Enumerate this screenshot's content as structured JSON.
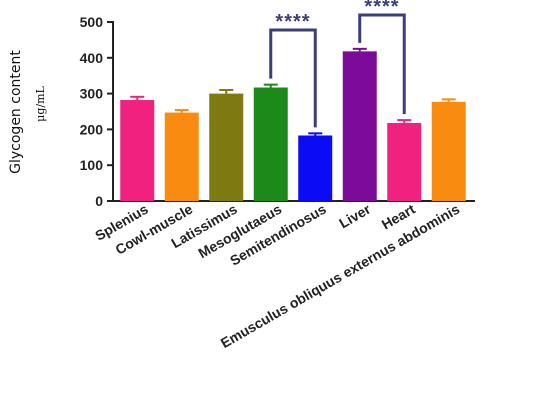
{
  "chart_data": {
    "type": "bar",
    "title": "",
    "ylabel": "Glycogen content",
    "yunit": "μg/mL",
    "ylim": [
      0,
      500
    ],
    "yticks": [
      0,
      100,
      200,
      300,
      400,
      500
    ],
    "categories": [
      "Splenius",
      "Cowl-muscle",
      "Latissimus",
      "Mesoglutaeus",
      "Semitendinosus",
      "Liver",
      "Heart",
      "Emusculus obliquus externus abdominis"
    ],
    "values": [
      282,
      247,
      300,
      317,
      183,
      418,
      218,
      277
    ],
    "errors": [
      9,
      7,
      10,
      8,
      6,
      7,
      8,
      7
    ],
    "colors": [
      "#f0217f",
      "#f98b10",
      "#7e7a12",
      "#1b8a1b",
      "#0b0bf5",
      "#7d0b9a",
      "#f0217f",
      "#f98b10"
    ],
    "significance": [
      {
        "from": "Mesoglutaeus",
        "to": "Semitendinosus",
        "label": "****"
      },
      {
        "from": "Liver",
        "to": "Heart",
        "label": "****"
      }
    ],
    "bracket_color": "#3a3f7a",
    "grid": false,
    "legend": "none"
  }
}
